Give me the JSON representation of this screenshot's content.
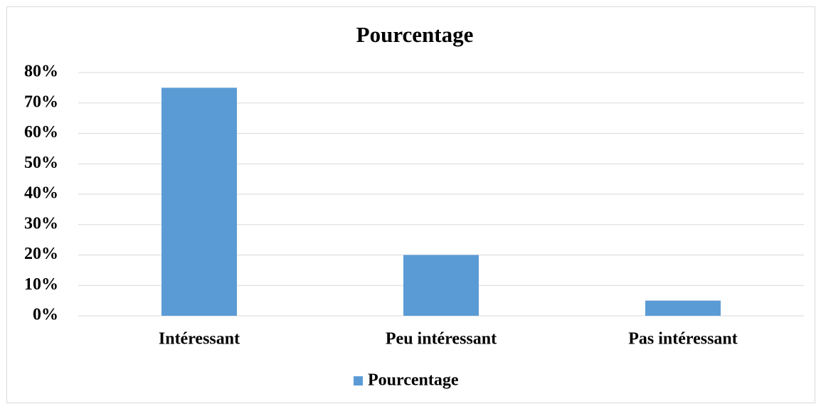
{
  "chart_data": {
    "type": "bar",
    "title": "Pourcentage",
    "categories": [
      "Intéressant",
      "Peu intéressant",
      "Pas intéressant"
    ],
    "series": [
      {
        "name": "Pourcentage",
        "color": "#5b9bd5",
        "values": [
          75,
          20,
          5
        ]
      }
    ],
    "ylim": [
      0,
      80
    ],
    "yticks": [
      {
        "value": 0,
        "label": "0%"
      },
      {
        "value": 10,
        "label": "10%"
      },
      {
        "value": 20,
        "label": "20%"
      },
      {
        "value": 30,
        "label": "30%"
      },
      {
        "value": 40,
        "label": "40%"
      },
      {
        "value": 50,
        "label": "50%"
      },
      {
        "value": 60,
        "label": "60%"
      },
      {
        "value": 70,
        "label": "70%"
      },
      {
        "value": 80,
        "label": "80%"
      }
    ],
    "grid": true,
    "legend": "bottom"
  }
}
